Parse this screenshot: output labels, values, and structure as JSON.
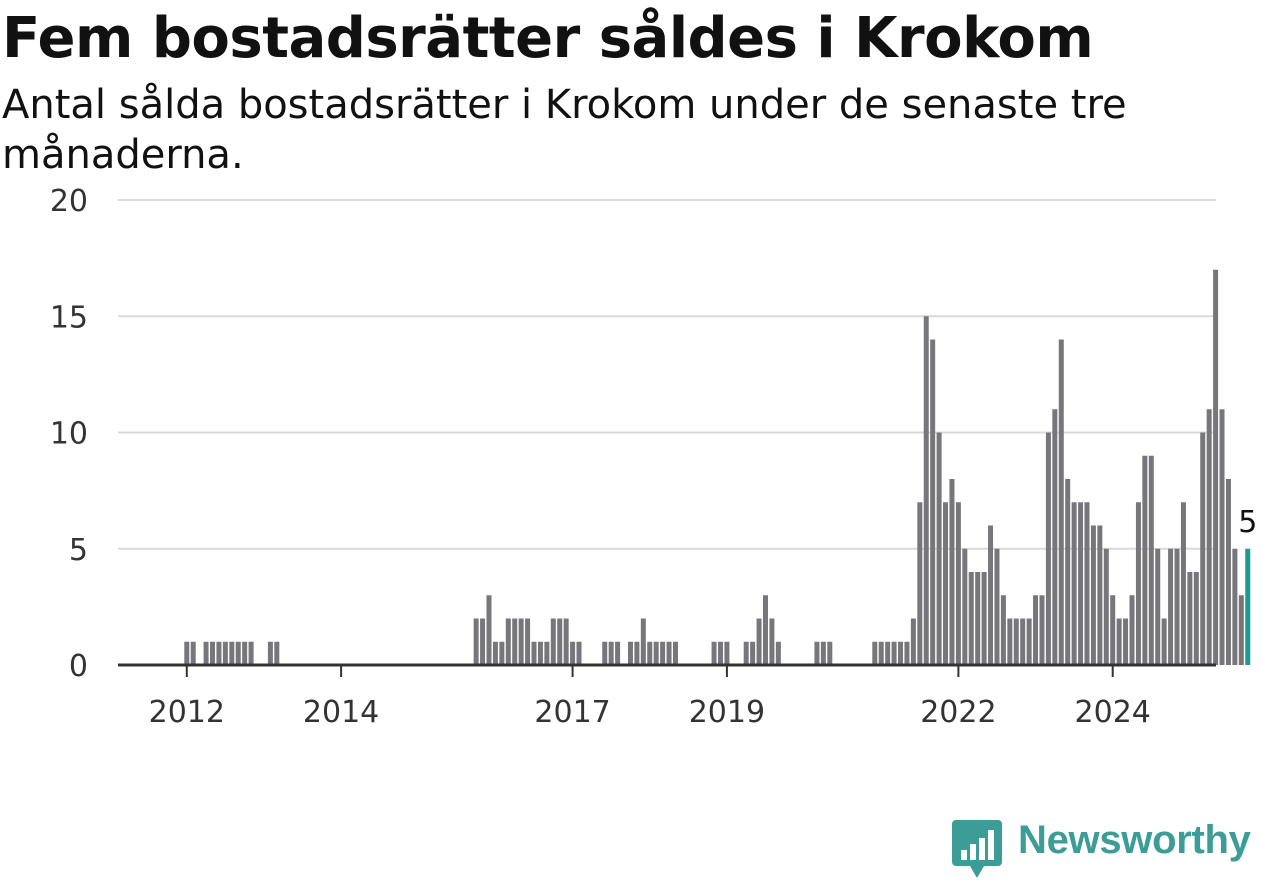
{
  "chart_data": {
    "type": "bar",
    "title": "Fem bostadsrätter såldes i Krokom",
    "subtitle": "Antal sålda bostadsrätter i Krokom under de senaste tre månaderna.",
    "ylim": [
      0,
      20
    ],
    "yticks": [
      "0",
      "5",
      "10",
      "15",
      "20"
    ],
    "x_start": "2011-10",
    "xticks": [
      {
        "month": "2012-01",
        "label": "2012"
      },
      {
        "month": "2014-01",
        "label": "2014"
      },
      {
        "month": "2017-01",
        "label": "2017"
      },
      {
        "month": "2019-01",
        "label": "2019"
      },
      {
        "month": "2022-01",
        "label": "2022"
      },
      {
        "month": "2024-01",
        "label": "2024"
      }
    ],
    "values": [
      0,
      0,
      0,
      1,
      1,
      0,
      1,
      1,
      1,
      1,
      1,
      1,
      1,
      1,
      0,
      0,
      1,
      1,
      0,
      0,
      0,
      0,
      0,
      0,
      0,
      0,
      0,
      0,
      0,
      0,
      0,
      0,
      0,
      0,
      0,
      0,
      0,
      0,
      0,
      0,
      0,
      0,
      0,
      0,
      0,
      0,
      0,
      0,
      2,
      2,
      3,
      1,
      1,
      2,
      2,
      2,
      2,
      1,
      1,
      1,
      2,
      2,
      2,
      1,
      1,
      0,
      0,
      0,
      1,
      1,
      1,
      0,
      1,
      1,
      2,
      1,
      1,
      1,
      1,
      1,
      0,
      0,
      0,
      0,
      0,
      1,
      1,
      1,
      0,
      0,
      1,
      1,
      2,
      3,
      2,
      1,
      0,
      0,
      0,
      0,
      0,
      1,
      1,
      1,
      0,
      0,
      0,
      0,
      0,
      0,
      1,
      1,
      1,
      1,
      1,
      1,
      2,
      7,
      15,
      14,
      10,
      7,
      8,
      7,
      5,
      4,
      4,
      4,
      6,
      5,
      3,
      2,
      2,
      2,
      2,
      3,
      3,
      10,
      11,
      14,
      8,
      7,
      7,
      7,
      6,
      6,
      5,
      3,
      2,
      2,
      3,
      7,
      9,
      9,
      5,
      2,
      5,
      5,
      7,
      4,
      4,
      10,
      11,
      17,
      11,
      8,
      5,
      3,
      5
    ],
    "highlight_last": true,
    "last_value_label": "5",
    "colors": {
      "bar": "#77767b",
      "highlight": "#1a9c95",
      "grid": "#d9d9d9",
      "axis": "#333333"
    }
  },
  "branding": {
    "name": "Newsworthy",
    "color": "#3b9d96",
    "logo_icon": "bar-chart-speech-bubble-icon"
  }
}
